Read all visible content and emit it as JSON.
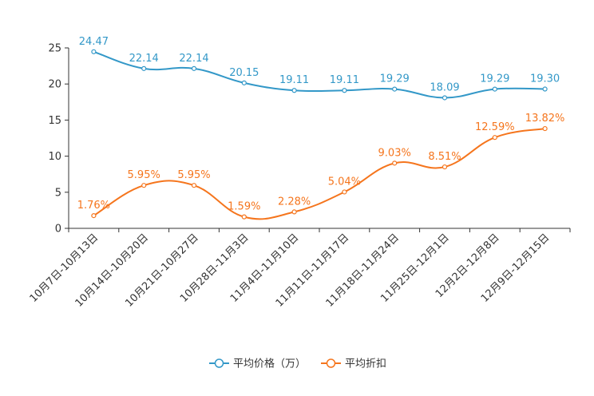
{
  "chart_data": {
    "type": "line",
    "title": "",
    "xlabel": "",
    "ylabel": "",
    "ylim": [
      0,
      25
    ],
    "yticks": [
      "0",
      "5",
      "10",
      "15",
      "20",
      "25"
    ],
    "categories": [
      "10月7日-10月13日",
      "10月14日-10月20日",
      "10月21日-10月27日",
      "10月28日-11月3日",
      "11月4日-11月10日",
      "11月11日-11月17日",
      "11月18日-11月24日",
      "11月25日-12月1日",
      "12月2日-12月8日",
      "12月9日-12月15日"
    ],
    "series": [
      {
        "name": "平均价格（万）",
        "color": "#3398c8",
        "values": [
          24.47,
          22.14,
          22.14,
          20.15,
          19.11,
          19.11,
          19.29,
          18.09,
          19.29,
          19.3
        ],
        "labels": [
          "24.47",
          "22.14",
          "22.14",
          "20.15",
          "19.11",
          "19.11",
          "19.29",
          "18.09",
          "19.29",
          "19.30"
        ]
      },
      {
        "name": "平均折扣",
        "color": "#f5751d",
        "values": [
          1.76,
          5.95,
          5.95,
          1.59,
          2.28,
          5.04,
          9.03,
          8.51,
          12.59,
          13.82
        ],
        "labels": [
          "1.76%",
          "5.95%",
          "5.95%",
          "1.59%",
          "2.28%",
          "5.04%",
          "9.03%",
          "8.51%",
          "12.59%",
          "13.82%"
        ]
      }
    ],
    "legend_position": "bottom-center",
    "grid": false
  }
}
